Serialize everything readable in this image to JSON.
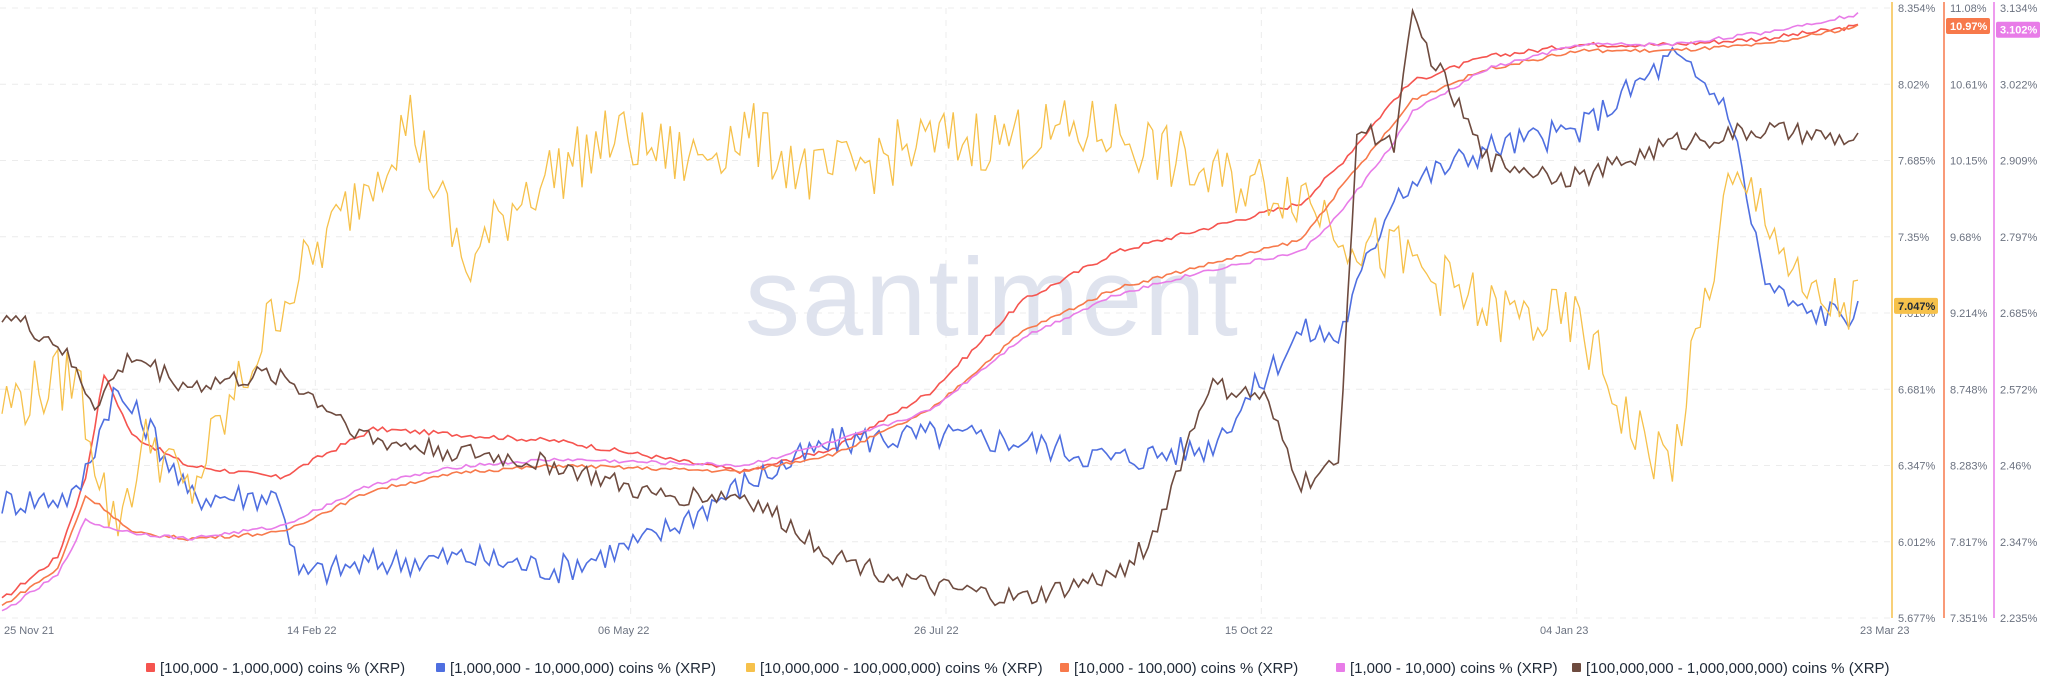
{
  "watermark": "santiment",
  "chart_data": {
    "type": "line",
    "title": "",
    "xlabel": "",
    "ylabel": "",
    "grid": true,
    "legend_placement": "bottom",
    "x_ticks": [
      "25 Nov 21",
      "14 Feb 22",
      "06 May 22",
      "26 Jul 22",
      "15 Oct 22",
      "04 Jan 23",
      "23 Mar 23"
    ],
    "axes": [
      {
        "id": "axis1",
        "ticks": [
          "8.354%",
          "8.02%",
          "7.685%",
          "7.35%",
          "7.016%",
          "6.681%",
          "6.347%",
          "6.012%",
          "5.677%"
        ],
        "ylim": [
          5.677,
          8.354
        ],
        "color": "#f6c14b",
        "current_label": "7.047%"
      },
      {
        "id": "axis2",
        "ticks": [
          "11.08%",
          "10.61%",
          "10.15%",
          "9.68%",
          "9.214%",
          "8.748%",
          "8.283%",
          "7.817%",
          "7.351%"
        ],
        "ylim": [
          7.351,
          11.08
        ],
        "color": "#f7794b",
        "current_label": "10.97%"
      },
      {
        "id": "axis3",
        "ticks": [
          "3.134%",
          "3.022%",
          "2.909%",
          "2.797%",
          "2.685%",
          "2.572%",
          "2.46%",
          "2.347%",
          "2.235%"
        ],
        "ylim": [
          2.235,
          3.134
        ],
        "color": "#e87ce8",
        "current_label": "3.102%"
      }
    ],
    "series": [
      {
        "name": "[100,000  - 1,000,000) coins % (XRP)",
        "color": "#f5544f",
        "x": [
          0,
          0.03,
          0.045,
          0.055,
          0.07,
          0.1,
          0.15,
          0.2,
          0.25,
          0.3,
          0.4,
          0.45,
          0.5,
          0.55,
          0.6,
          0.65,
          0.7,
          0.72,
          0.75,
          0.76,
          0.8,
          0.85,
          0.9,
          0.95,
          1.0
        ],
        "values": [
          0.03,
          0.1,
          0.23,
          0.4,
          0.3,
          0.25,
          0.23,
          0.31,
          0.3,
          0.29,
          0.24,
          0.28,
          0.37,
          0.52,
          0.6,
          0.64,
          0.68,
          0.74,
          0.85,
          0.88,
          0.92,
          0.94,
          0.94,
          0.95,
          0.97
        ]
      },
      {
        "name": "[1,000,000 - 10,000,000) coins % (XRP)",
        "color": "#4f6fe0",
        "x": [
          0,
          0.04,
          0.06,
          0.08,
          0.1,
          0.15,
          0.16,
          0.2,
          0.25,
          0.3,
          0.35,
          0.4,
          0.45,
          0.5,
          0.55,
          0.6,
          0.65,
          0.7,
          0.72,
          0.75,
          0.8,
          0.85,
          0.9,
          0.93,
          0.95,
          0.97,
          1.0
        ],
        "values": [
          0.19,
          0.2,
          0.37,
          0.31,
          0.2,
          0.2,
          0.07,
          0.09,
          0.1,
          0.08,
          0.13,
          0.22,
          0.29,
          0.3,
          0.29,
          0.26,
          0.28,
          0.47,
          0.46,
          0.7,
          0.77,
          0.8,
          0.92,
          0.84,
          0.55,
          0.5,
          0.5
        ]
      },
      {
        "name": "[10,000,000 - 100,000,000) coins % (XRP)",
        "color": "#f6c14b",
        "x": [
          0,
          0.04,
          0.06,
          0.08,
          0.1,
          0.15,
          0.17,
          0.22,
          0.25,
          0.28,
          0.33,
          0.37,
          0.4,
          0.44,
          0.5,
          0.55,
          0.6,
          0.65,
          0.7,
          0.73,
          0.76,
          0.8,
          0.85,
          0.88,
          0.9,
          0.93,
          0.95,
          0.97,
          1.0
        ],
        "values": [
          0.35,
          0.4,
          0.15,
          0.3,
          0.2,
          0.52,
          0.6,
          0.82,
          0.57,
          0.7,
          0.79,
          0.75,
          0.8,
          0.72,
          0.78,
          0.79,
          0.8,
          0.72,
          0.7,
          0.62,
          0.58,
          0.5,
          0.48,
          0.3,
          0.25,
          0.7,
          0.68,
          0.52,
          0.51
        ]
      },
      {
        "name": "[10,000 - 100,000) coins % (XRP)",
        "color": "#f7794b",
        "x": [
          0,
          0.03,
          0.045,
          0.055,
          0.07,
          0.1,
          0.15,
          0.2,
          0.25,
          0.3,
          0.4,
          0.45,
          0.5,
          0.55,
          0.6,
          0.65,
          0.7,
          0.72,
          0.75,
          0.76,
          0.8,
          0.85,
          0.9,
          0.95,
          1.0
        ],
        "values": [
          0.02,
          0.08,
          0.2,
          0.18,
          0.14,
          0.13,
          0.14,
          0.21,
          0.24,
          0.25,
          0.24,
          0.27,
          0.34,
          0.47,
          0.54,
          0.58,
          0.62,
          0.7,
          0.81,
          0.85,
          0.9,
          0.93,
          0.93,
          0.94,
          0.97
        ]
      },
      {
        "name": "[1,000 - 10,000) coins % (XRP)",
        "color": "#e87ce8",
        "x": [
          0,
          0.03,
          0.045,
          0.055,
          0.07,
          0.1,
          0.15,
          0.2,
          0.25,
          0.3,
          0.4,
          0.45,
          0.5,
          0.55,
          0.6,
          0.65,
          0.7,
          0.72,
          0.75,
          0.76,
          0.8,
          0.85,
          0.9,
          0.95,
          1.0
        ],
        "values": [
          0.01,
          0.07,
          0.16,
          0.15,
          0.14,
          0.13,
          0.15,
          0.22,
          0.25,
          0.26,
          0.25,
          0.29,
          0.34,
          0.46,
          0.53,
          0.57,
          0.6,
          0.66,
          0.78,
          0.83,
          0.9,
          0.94,
          0.94,
          0.96,
          0.99
        ]
      },
      {
        "name": "[100,000,000 - 1,000,000,000) coins % (XRP)",
        "color": "#6e4b3f",
        "x": [
          0,
          0.03,
          0.05,
          0.07,
          0.1,
          0.15,
          0.2,
          0.25,
          0.3,
          0.35,
          0.4,
          0.45,
          0.5,
          0.55,
          0.6,
          0.62,
          0.65,
          0.68,
          0.7,
          0.72,
          0.73,
          0.75,
          0.76,
          0.8,
          0.85,
          0.9,
          0.95,
          1.0
        ],
        "values": [
          0.5,
          0.45,
          0.35,
          0.43,
          0.38,
          0.4,
          0.29,
          0.27,
          0.25,
          0.2,
          0.2,
          0.1,
          0.05,
          0.03,
          0.07,
          0.13,
          0.38,
          0.36,
          0.22,
          0.25,
          0.8,
          0.78,
          0.98,
          0.75,
          0.72,
          0.78,
          0.8,
          0.78
        ]
      }
    ]
  }
}
